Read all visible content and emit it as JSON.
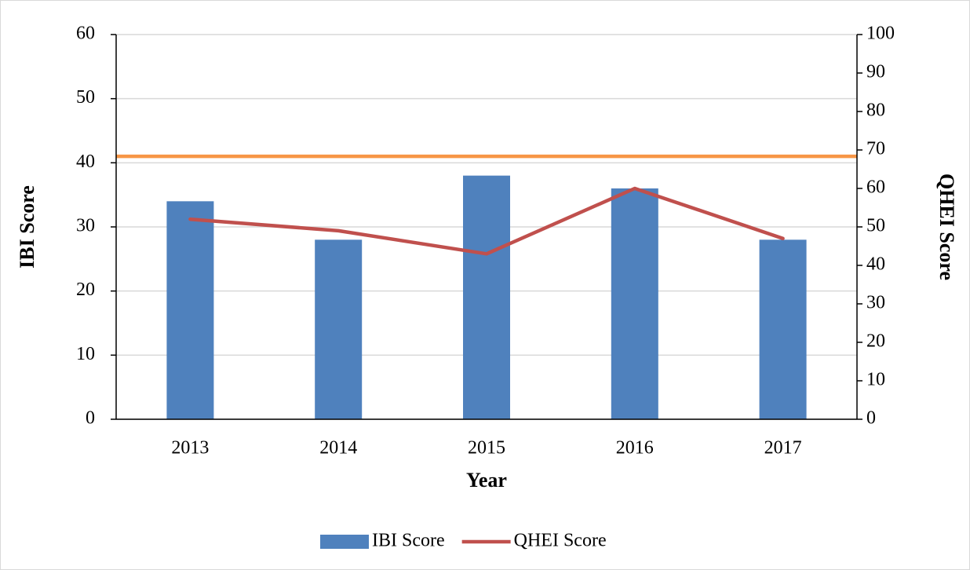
{
  "chart_data": {
    "type": "bar_line",
    "x_label": "Year",
    "y_label": "IBI Score",
    "y2_label": "QHEI Score",
    "categories": [
      "2013",
      "2014",
      "2015",
      "2016",
      "2017"
    ],
    "series": [
      {
        "name": "IBI Score",
        "type": "bar",
        "color": "#4f81bd",
        "values": [
          34,
          28,
          38,
          36,
          28
        ]
      },
      {
        "name": "QHEI Score",
        "type": "line",
        "axis": "y2",
        "color": "#c0504d",
        "values": [
          52,
          49,
          43,
          60,
          47
        ]
      }
    ],
    "reference_line": {
      "value": 41,
      "color": "#f79646"
    },
    "ylim": [
      0,
      60
    ],
    "yticks": [
      0,
      10,
      20,
      30,
      40,
      50,
      60
    ],
    "y2lim": [
      0,
      100
    ],
    "y2ticks": [
      0,
      10,
      20,
      30,
      40,
      50,
      60,
      70,
      80,
      90,
      100
    ],
    "grid": true,
    "legend": "bottom"
  }
}
